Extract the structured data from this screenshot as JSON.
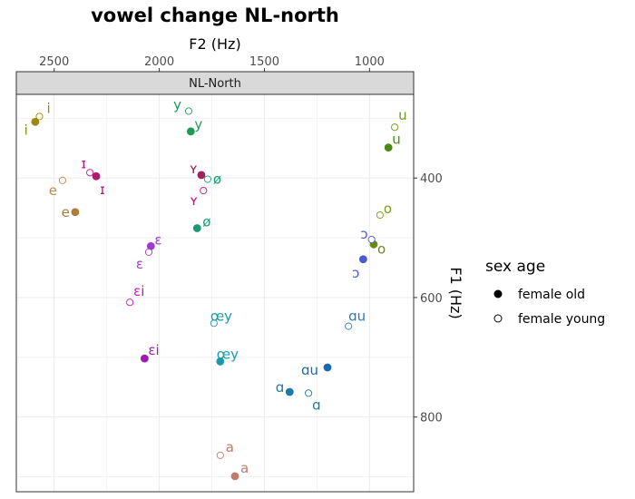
{
  "chart_data": {
    "type": "scatter",
    "title": "vowel change NL-north",
    "facet": "NL-North",
    "xlabel": "F2 (Hz)",
    "ylabel": "F1 (Hz)",
    "x_reversed": true,
    "y_reversed": true,
    "x_axis_position": "top",
    "y_axis_position": "right",
    "xlim": [
      2680,
      790
    ],
    "ylim": [
      260,
      925
    ],
    "xticks": [
      2500,
      2000,
      1500,
      1000
    ],
    "yticks": [
      400,
      600,
      800
    ],
    "grid": true,
    "legend": {
      "title": "sex age",
      "position": "right",
      "entries": [
        {
          "label": "female old",
          "filled": true
        },
        {
          "label": "female young",
          "filled": false
        }
      ]
    },
    "points": [
      {
        "vowel": "i",
        "group": "female young",
        "f2": 2570,
        "f1": 297,
        "color": "#9a8a12"
      },
      {
        "vowel": "i",
        "group": "female old",
        "f2": 2590,
        "f1": 306,
        "color": "#9a8a12"
      },
      {
        "vowel": "y",
        "group": "female young",
        "f2": 1860,
        "f1": 288,
        "color": "#1f9a55"
      },
      {
        "vowel": "y",
        "group": "female old",
        "f2": 1850,
        "f1": 322,
        "color": "#1f9a55"
      },
      {
        "vowel": "u",
        "group": "female young",
        "f2": 880,
        "f1": 315,
        "color": "#6a9a1a"
      },
      {
        "vowel": "u",
        "group": "female old",
        "f2": 910,
        "f1": 349,
        "color": "#4a8a12"
      },
      {
        "vowel": "ɪ",
        "group": "female young",
        "f2": 2330,
        "f1": 391,
        "color": "#c0148c"
      },
      {
        "vowel": "ɪ",
        "group": "female old",
        "f2": 2300,
        "f1": 397,
        "color": "#b01a6e"
      },
      {
        "vowel": "ʏ",
        "group": "female old",
        "f2": 1800,
        "f1": 395,
        "color": "#a31f5e"
      },
      {
        "vowel": "ʏ",
        "group": "female young",
        "f2": 1790,
        "f1": 421,
        "color": "#c0148c"
      },
      {
        "vowel": "ø",
        "group": "female young",
        "f2": 1770,
        "f1": 402,
        "color": "#1a9a73"
      },
      {
        "vowel": "ø",
        "group": "female old",
        "f2": 1820,
        "f1": 484,
        "color": "#1a9a73"
      },
      {
        "vowel": "e",
        "group": "female young",
        "f2": 2460,
        "f1": 404,
        "color": "#c08a4a"
      },
      {
        "vowel": "e",
        "group": "female old",
        "f2": 2400,
        "f1": 457,
        "color": "#b07a3a"
      },
      {
        "vowel": "o",
        "group": "female young",
        "f2": 950,
        "f1": 462,
        "color": "#7a9a1a"
      },
      {
        "vowel": "o",
        "group": "female old",
        "f2": 980,
        "f1": 511,
        "color": "#6a8a12"
      },
      {
        "vowel": "ɔ",
        "group": "female young",
        "f2": 990,
        "f1": 503,
        "color": "#4a5ad0"
      },
      {
        "vowel": "ɔ",
        "group": "female old",
        "f2": 1030,
        "f1": 536,
        "color": "#4a5ad0"
      },
      {
        "vowel": "ɛ",
        "group": "female old",
        "f2": 2040,
        "f1": 514,
        "color": "#a23ad0"
      },
      {
        "vowel": "ɛ",
        "group": "female young",
        "f2": 2050,
        "f1": 524,
        "color": "#a23ad0"
      },
      {
        "vowel": "ɛi",
        "group": "female young",
        "f2": 2140,
        "f1": 608,
        "color": "#c01ac0"
      },
      {
        "vowel": "ɛi",
        "group": "female old",
        "f2": 2070,
        "f1": 702,
        "color": "#a01ab0"
      },
      {
        "vowel": "œy",
        "group": "female young",
        "f2": 1740,
        "f1": 643,
        "color": "#1a9aa8"
      },
      {
        "vowel": "œy",
        "group": "female old",
        "f2": 1710,
        "f1": 707,
        "color": "#1a9aa8"
      },
      {
        "vowel": "ɑu",
        "group": "female young",
        "f2": 1100,
        "f1": 648,
        "color": "#2a7ac0"
      },
      {
        "vowel": "ɑu",
        "group": "female old",
        "f2": 1200,
        "f1": 717,
        "color": "#1a6ab0"
      },
      {
        "vowel": "ɑ",
        "group": "female old",
        "f2": 1380,
        "f1": 758,
        "color": "#1a7aa8"
      },
      {
        "vowel": "ɑ",
        "group": "female young",
        "f2": 1290,
        "f1": 760,
        "color": "#1a7aa8"
      },
      {
        "vowel": "a",
        "group": "female young",
        "f2": 1710,
        "f1": 864,
        "color": "#c07a6a"
      },
      {
        "vowel": "a",
        "group": "female old",
        "f2": 1640,
        "f1": 899,
        "color": "#c07a6a"
      }
    ]
  }
}
